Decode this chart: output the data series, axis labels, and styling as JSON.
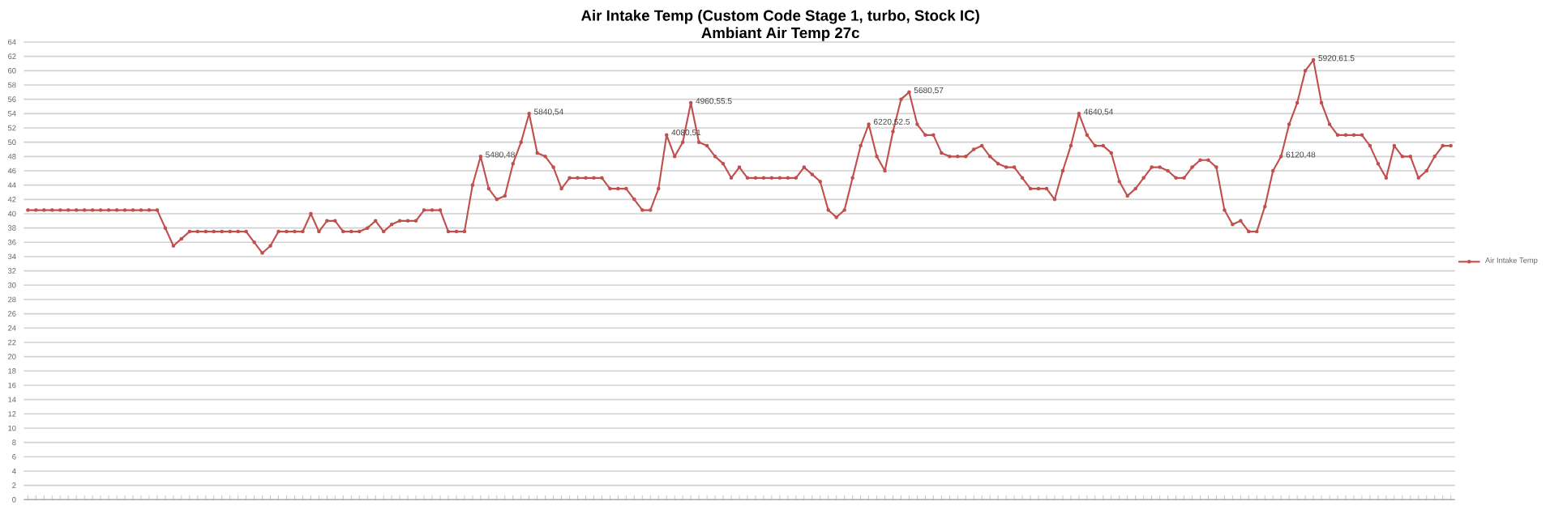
{
  "chart_data": {
    "type": "line",
    "title": "Air Intake Temp (Custom Code Stage 1, turbo, Stock IC)",
    "subtitle": "Ambiant Air Temp 27c",
    "categories": [
      null,
      null,
      null,
      null,
      null,
      null,
      null,
      null,
      null,
      null,
      null,
      null,
      null,
      null,
      null,
      null,
      null,
      null,
      null,
      null,
      null,
      null,
      null,
      null,
      null,
      null,
      null,
      null,
      null,
      null,
      null,
      null,
      null,
      null,
      null,
      null,
      null,
      null,
      null,
      null,
      null,
      null,
      null,
      null,
      null,
      null,
      null,
      null,
      null,
      null,
      null,
      null,
      null,
      null,
      null,
      null,
      null,
      null,
      null,
      null,
      null,
      null,
      null,
      null,
      null,
      null,
      null,
      null,
      null,
      null,
      null,
      null,
      null,
      null,
      null,
      null,
      null,
      null,
      null,
      null,
      null,
      null,
      null,
      null,
      null,
      null,
      null,
      null,
      null,
      null,
      null,
      null,
      null,
      null,
      null,
      null,
      null,
      null,
      null,
      null,
      null,
      null,
      null,
      null,
      null,
      null,
      null,
      null,
      null,
      null,
      null,
      null,
      null,
      null,
      null,
      null,
      null,
      null,
      null,
      null,
      null,
      null,
      null,
      null,
      null,
      null,
      null,
      null,
      null,
      null,
      null,
      null,
      null,
      null,
      null,
      null,
      null,
      null,
      null,
      null,
      null,
      null,
      null,
      null,
      null,
      null,
      null,
      null,
      null,
      null,
      null,
      null,
      null,
      null,
      null,
      null,
      null,
      null,
      null,
      null,
      null,
      null,
      null,
      null,
      null,
      null,
      null,
      null,
      null,
      null,
      null,
      null,
      null,
      null,
      null,
      null,
      null
    ],
    "series": [
      {
        "name": "Air Intake Temp",
        "color": "#c0504d",
        "values": [
          40.5,
          40.5,
          40.5,
          40.5,
          40.5,
          40.5,
          40.5,
          40.5,
          40.5,
          40.5,
          40.5,
          40.5,
          40.5,
          40.5,
          40.5,
          40.5,
          40.5,
          38,
          35.5,
          36.5,
          37.5,
          37.5,
          37.5,
          37.5,
          37.5,
          37.5,
          37.5,
          37.5,
          36,
          34.5,
          35.5,
          37.5,
          37.5,
          37.5,
          37.5,
          40,
          37.5,
          39,
          39,
          37.5,
          37.5,
          37.5,
          38,
          39,
          37.5,
          38.5,
          39,
          39,
          39,
          40.5,
          40.5,
          40.5,
          37.5,
          37.5,
          37.5,
          44,
          48,
          43.5,
          42,
          42.5,
          47,
          50,
          54,
          48.5,
          48,
          46.5,
          43.5,
          45,
          45,
          45,
          45,
          45,
          43.5,
          43.5,
          43.5,
          42,
          40.5,
          40.5,
          43.5,
          51,
          48,
          50,
          55.5,
          50,
          49.5,
          48,
          47,
          45,
          46.5,
          45,
          45,
          45,
          45,
          45,
          45,
          45,
          46.5,
          45.5,
          44.5,
          40.5,
          39.5,
          40.5,
          45,
          49.5,
          52.5,
          48,
          46,
          51.5,
          56,
          57,
          52.5,
          51,
          51,
          48.5,
          48,
          48,
          48,
          49,
          49.5,
          48,
          47,
          46.5,
          46.5,
          45,
          43.5,
          43.5,
          43.5,
          42,
          46,
          49.5,
          54,
          51,
          49.5,
          49.5,
          48.5,
          44.5,
          42.5,
          43.5,
          45,
          46.5,
          46.5,
          46,
          45,
          45,
          46.5,
          47.5,
          47.5,
          46.5,
          40.5,
          38.5,
          39,
          37.5,
          37.5,
          41,
          46,
          48,
          52.5,
          55.5,
          60,
          61.5,
          55.5,
          52.5,
          51,
          51,
          51,
          51,
          49.5,
          47,
          45,
          49.5,
          48,
          48,
          45,
          46,
          48,
          49.5,
          49.5
        ]
      }
    ],
    "ylim": [
      0,
      64
    ],
    "yticks": [
      0,
      2,
      4,
      6,
      8,
      10,
      12,
      14,
      16,
      18,
      20,
      22,
      24,
      26,
      28,
      30,
      32,
      34,
      36,
      38,
      40,
      42,
      44,
      46,
      48,
      50,
      52,
      54,
      56,
      58,
      60,
      62,
      64
    ],
    "grid": "y",
    "legend": "right",
    "marker": "circle",
    "tick_labels": "y",
    "annotations": [
      "5480,48",
      "5840,54",
      "4080,51",
      "4960,55.5",
      "6220,52.5",
      "5680,57",
      "4640,54",
      "6120,48",
      "5920,61.5"
    ]
  }
}
